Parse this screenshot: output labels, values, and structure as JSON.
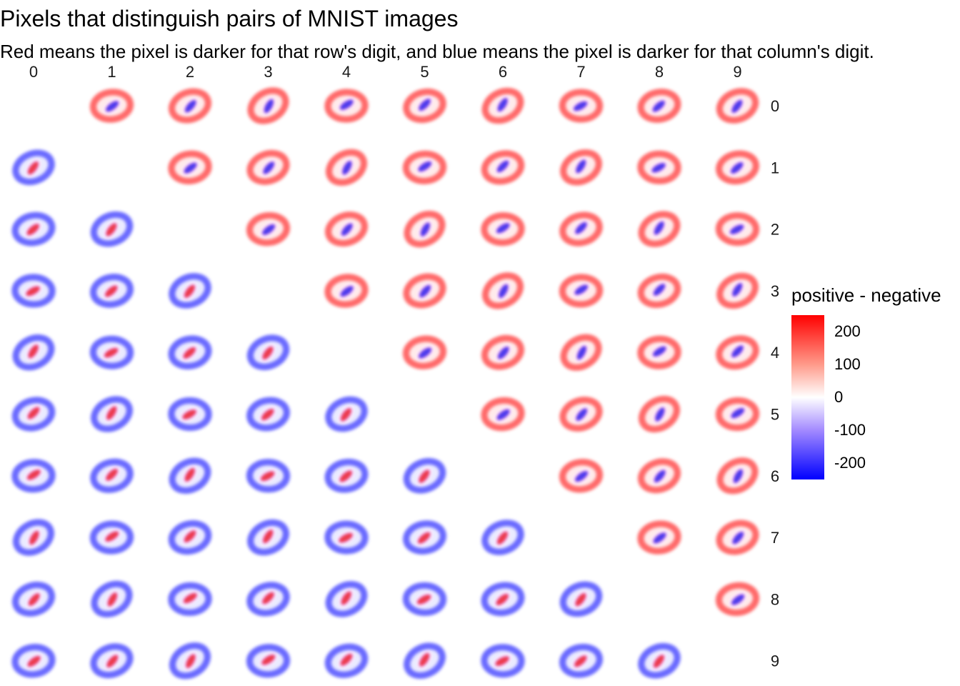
{
  "title": "Pixels that distinguish pairs of MNIST images",
  "subtitle": "Red means the pixel is darker for that row's digit, and blue means the pixel is darker for that column's digit.",
  "legend": {
    "title": "positive - negative",
    "ticks": [
      "200",
      "100",
      "0",
      "-100",
      "-200"
    ],
    "colors": {
      "high": "#ff0000",
      "mid": "#ffffff",
      "low": "#0000ff"
    }
  },
  "chart_data": {
    "type": "heatmap",
    "facet_columns": [
      "0",
      "1",
      "2",
      "3",
      "4",
      "5",
      "6",
      "7",
      "8",
      "9"
    ],
    "facet_rows": [
      "0",
      "1",
      "2",
      "3",
      "4",
      "5",
      "6",
      "7",
      "8",
      "9"
    ],
    "diagonal_empty": true,
    "fill_scale": {
      "limits": [
        -250,
        250
      ],
      "breaks": [
        -200,
        -100,
        0,
        100,
        200
      ],
      "low": "#0000ff",
      "mid": "#ffffff",
      "high": "#ff0000"
    }
  }
}
